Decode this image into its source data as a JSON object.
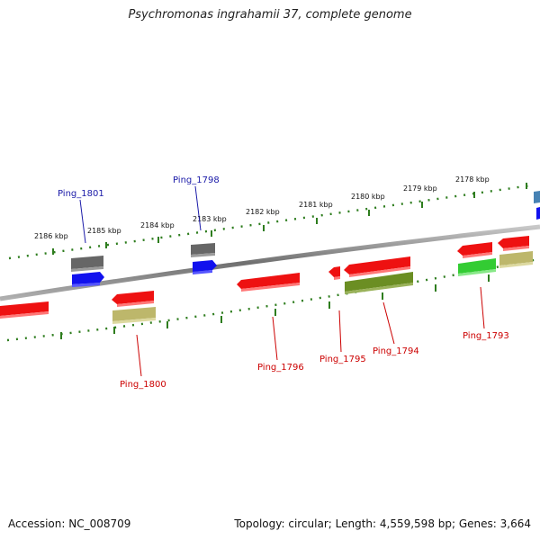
{
  "title": "Psychromonas ingrahamii 37, complete genome",
  "footer": {
    "accession": "Accession: NC_008709",
    "stats": "Topology: circular; Length: 4,559,598 bp; Genes: 3,664"
  },
  "scale_labels": [
    "2186 kbp",
    "2185 kbp",
    "2184 kbp",
    "2183 kbp",
    "2182 kbp",
    "2181 kbp",
    "2180 kbp",
    "2179 kbp",
    "2178 kbp"
  ],
  "gene_labels_top": [
    "Ping_1801",
    "Ping_1798"
  ],
  "gene_labels_bottom": [
    "Ping_1800",
    "Ping_1796",
    "Ping_1795",
    "Ping_1794",
    "Ping_1793"
  ],
  "colors": {
    "backbone": "#808080",
    "tick": "#2e7d1e",
    "label_top": "#1a1aa8",
    "label_bottom": "#cc0000",
    "gene_red": "#ee1111",
    "gene_blue": "#1111ee",
    "gene_grey": "#666666",
    "gene_green": "#33cc33",
    "gene_olive": "#6b8e23",
    "gene_khaki": "#bdb76b",
    "gene_steel": "#4682b4"
  }
}
